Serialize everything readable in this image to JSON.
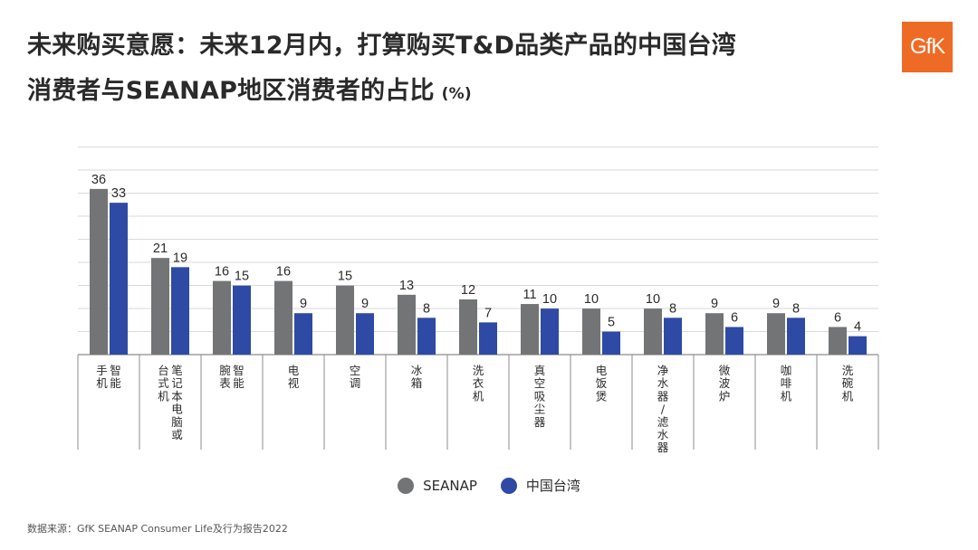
{
  "header": {
    "title_line1": "未来购买意愿：未来12月内，打算购买T&D品类产品的中国台湾",
    "title_line2": "消费者与SEANAP地区消费者的占比",
    "unit": "(%)",
    "logo_text": "GfK"
  },
  "colors": {
    "seanap": "#727476",
    "taiwan": "#2e4aa4",
    "grid": "#d9d9d9",
    "logo_bg": "#ee6b25"
  },
  "chart_data": {
    "type": "bar",
    "categories": [
      [
        "智能",
        "手机"
      ],
      [
        "笔记本电脑或",
        "台式机"
      ],
      [
        "智能",
        "腕表"
      ],
      [
        "电视"
      ],
      [
        "空调"
      ],
      [
        "冰箱"
      ],
      [
        "洗衣机"
      ],
      [
        "真空吸尘器"
      ],
      [
        "电饭煲"
      ],
      [
        "净水器/滤水器"
      ],
      [
        "微波炉"
      ],
      [
        "咖啡机"
      ],
      [
        "洗碗机"
      ]
    ],
    "series": [
      {
        "name": "SEANAP",
        "values": [
          36,
          21,
          16,
          16,
          15,
          13,
          12,
          11,
          10,
          10,
          9,
          9,
          6
        ]
      },
      {
        "name": "中国台湾",
        "values": [
          33,
          19,
          15,
          9,
          9,
          8,
          7,
          10,
          5,
          8,
          6,
          8,
          4
        ]
      }
    ],
    "ylim": [
      0,
      46
    ],
    "grid": true,
    "legend_placement": "bottom"
  },
  "source": "数据来源：GfK SEANAP Consumer Life及行为报告2022"
}
